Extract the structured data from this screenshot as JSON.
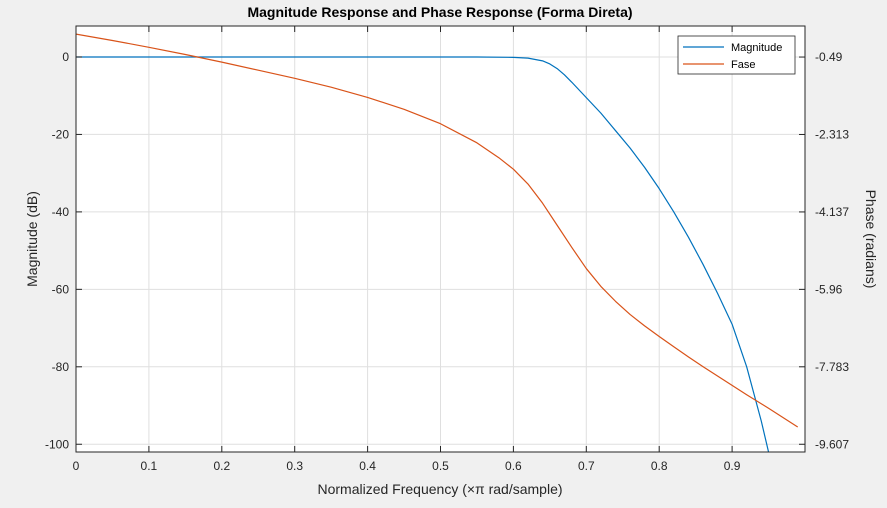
{
  "chart_data": {
    "type": "line",
    "title": "Magnitude Response and Phase Response (Forma Direta)",
    "xlabel": "Normalized Frequency (×π rad/sample)",
    "ylabel_left": "Magnitude (dB)",
    "ylabel_right": "Phase (radians)",
    "xlim": [
      0,
      1
    ],
    "ylim_left": [
      -102,
      8
    ],
    "ylim_right": [
      -9.789,
      0.241
    ],
    "x_ticks": [
      0,
      0.1,
      0.2,
      0.3,
      0.4,
      0.5,
      0.6,
      0.7,
      0.8,
      0.9
    ],
    "x_tick_labels": [
      "0",
      "0.1",
      "0.2",
      "0.3",
      "0.4",
      "0.5",
      "0.6",
      "0.7",
      "0.8",
      "0.9"
    ],
    "y_left_ticks": [
      0,
      -20,
      -40,
      -60,
      -80,
      -100
    ],
    "y_left_tick_labels": [
      "0",
      "-20",
      "-40",
      "-60",
      "-80",
      "-100"
    ],
    "y_right_ticks": [
      -0.49,
      -2.313,
      -4.137,
      -5.96,
      -7.783,
      -9.607
    ],
    "y_right_tick_labels": [
      "-0.49",
      "-2.313",
      "-4.137",
      "-5.96",
      "-7.783",
      "-9.607"
    ],
    "grid": true,
    "legend_position": "top-right",
    "series": [
      {
        "name": "Magnitude",
        "axis": "left",
        "color": "#0072bd",
        "x": [
          0,
          0.1,
          0.2,
          0.3,
          0.4,
          0.5,
          0.55,
          0.6,
          0.62,
          0.64,
          0.65,
          0.66,
          0.67,
          0.68,
          0.7,
          0.72,
          0.74,
          0.76,
          0.78,
          0.8,
          0.82,
          0.84,
          0.86,
          0.88,
          0.9,
          0.92,
          0.94,
          0.95
        ],
        "y": [
          0,
          0,
          0,
          0,
          0,
          0,
          0,
          -0.1,
          -0.3,
          -1,
          -1.8,
          -3,
          -4.6,
          -6.5,
          -10.5,
          -14.5,
          -19,
          -23.5,
          -28.5,
          -34,
          -40,
          -46.5,
          -53.5,
          -61,
          -69,
          -80,
          -94,
          -102
        ]
      },
      {
        "name": "Fase",
        "axis": "right",
        "color": "#d95319",
        "x": [
          0,
          0.05,
          0.1,
          0.15,
          0.2,
          0.25,
          0.3,
          0.35,
          0.4,
          0.45,
          0.5,
          0.55,
          0.58,
          0.6,
          0.62,
          0.64,
          0.66,
          0.68,
          0.7,
          0.72,
          0.74,
          0.76,
          0.78,
          0.8,
          0.82,
          0.84,
          0.86,
          0.88,
          0.9,
          0.92,
          0.95,
          0.99
        ],
        "y": [
          0.05,
          -0.1,
          -0.26,
          -0.43,
          -0.61,
          -0.8,
          -0.99,
          -1.2,
          -1.44,
          -1.72,
          -2.06,
          -2.51,
          -2.86,
          -3.13,
          -3.48,
          -3.93,
          -4.45,
          -4.97,
          -5.47,
          -5.89,
          -6.24,
          -6.55,
          -6.82,
          -7.07,
          -7.31,
          -7.55,
          -7.78,
          -8.0,
          -8.22,
          -8.44,
          -8.76,
          -9.2
        ]
      }
    ]
  }
}
